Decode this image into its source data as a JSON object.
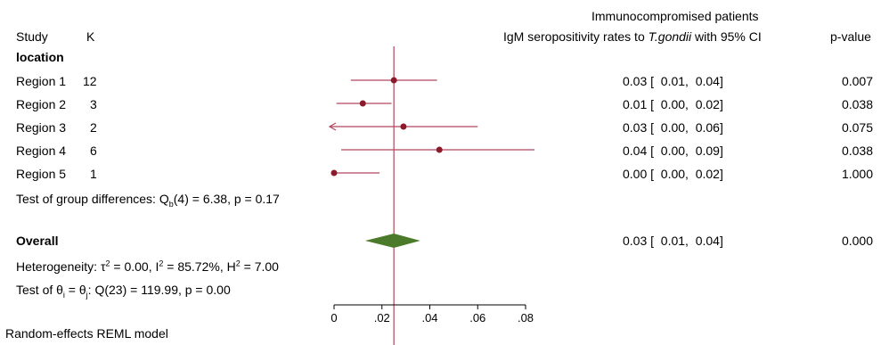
{
  "header": {
    "col_study": "Study",
    "col_k": "K",
    "group_title": "Immunocompromised patients",
    "effect_prefix": "IgM seropositivity rates to ",
    "effect_organism": "T.gondii",
    "effect_suffix": " with 95% CI",
    "col_p": "p-value"
  },
  "section_label": "location",
  "group_test": {
    "prefix": "Test of group differences: Q",
    "sub": "b",
    "stat": "(4) = 6.38, p = 0.17"
  },
  "overall_label": "Overall",
  "heterogeneity": {
    "prefix": "Heterogeneity: ",
    "tau": "τ",
    "tau_sq": "2",
    "tau_val": " = 0.00, I",
    "i_sq": "2",
    "i_val": " = 85.72%, H",
    "h_sq": "2",
    "h_val": " = 7.00"
  },
  "theta_test": {
    "prefix": "Test of θ",
    "sub_i": "i",
    "mid": " = θ",
    "sub_j": "j",
    "stat": ": Q(23) = 119.99, p = 0.00"
  },
  "model_note": "Random-effects REML model",
  "colors": {
    "marker": "#8b1a2b",
    "ci_line": "#b0475e",
    "reference_line": "#b0475e",
    "diamond": "#4a7a2a"
  },
  "chart_data": {
    "type": "forest",
    "xlim": [
      0,
      0.08
    ],
    "ticks": [
      0,
      0.02,
      0.04,
      0.06,
      0.08
    ],
    "tick_labels": [
      "0",
      ".02",
      ".04",
      ".06",
      ".08"
    ],
    "reference_line": 0.025,
    "studies": [
      {
        "label": "Region 1",
        "k": "12",
        "est": 0.025,
        "lo": 0.007,
        "hi": 0.043,
        "arrow_left": false,
        "arrow_right": false,
        "ci_text": "0.03 [  0.01,  0.04]",
        "p": "0.007"
      },
      {
        "label": "Region 2",
        "k": "3",
        "est": 0.012,
        "lo": 0.001,
        "hi": 0.024,
        "arrow_left": false,
        "arrow_right": false,
        "ci_text": "0.01 [  0.00,  0.02]",
        "p": "0.038"
      },
      {
        "label": "Region 3",
        "k": "2",
        "est": 0.029,
        "lo": 0.0,
        "hi": 0.06,
        "arrow_left": true,
        "arrow_right": false,
        "ci_text": "0.03 [  0.00,  0.06]",
        "p": "0.075"
      },
      {
        "label": "Region 4",
        "k": "6",
        "est": 0.044,
        "lo": 0.003,
        "hi": 0.086,
        "arrow_left": false,
        "arrow_right": false,
        "ci_text": "0.04 [  0.00,  0.09]",
        "p": "0.038"
      },
      {
        "label": "Region 5",
        "k": "1",
        "est": 0.0,
        "lo": 0.0,
        "hi": 0.019,
        "arrow_left": false,
        "arrow_right": false,
        "ci_text": "0.00 [  0.00,  0.02]",
        "p": "1.000"
      }
    ],
    "overall": {
      "est": 0.025,
      "lo": 0.013,
      "hi": 0.036,
      "ci_text": "0.03 [  0.01,  0.04]",
      "p": "0.000"
    }
  }
}
